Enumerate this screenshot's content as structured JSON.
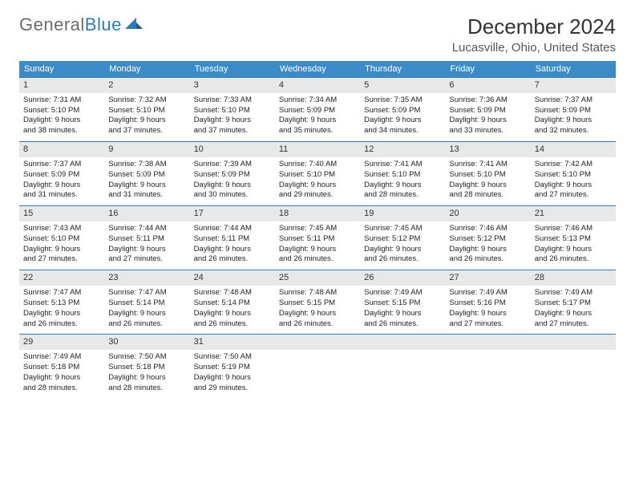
{
  "brand": {
    "part1": "General",
    "part2": "Blue"
  },
  "title": "December 2024",
  "location": "Lucasville, Ohio, United States",
  "colors": {
    "header_bg": "#3b8bc9",
    "header_text": "#ffffff",
    "daynum_bg": "#e8e8e8",
    "accent_border": "#2b7bbd"
  },
  "day_names": [
    "Sunday",
    "Monday",
    "Tuesday",
    "Wednesday",
    "Thursday",
    "Friday",
    "Saturday"
  ],
  "weeks": [
    [
      {
        "n": "1",
        "sr": "Sunrise: 7:31 AM",
        "ss": "Sunset: 5:10 PM",
        "d1": "Daylight: 9 hours",
        "d2": "and 38 minutes."
      },
      {
        "n": "2",
        "sr": "Sunrise: 7:32 AM",
        "ss": "Sunset: 5:10 PM",
        "d1": "Daylight: 9 hours",
        "d2": "and 37 minutes."
      },
      {
        "n": "3",
        "sr": "Sunrise: 7:33 AM",
        "ss": "Sunset: 5:10 PM",
        "d1": "Daylight: 9 hours",
        "d2": "and 37 minutes."
      },
      {
        "n": "4",
        "sr": "Sunrise: 7:34 AM",
        "ss": "Sunset: 5:09 PM",
        "d1": "Daylight: 9 hours",
        "d2": "and 35 minutes."
      },
      {
        "n": "5",
        "sr": "Sunrise: 7:35 AM",
        "ss": "Sunset: 5:09 PM",
        "d1": "Daylight: 9 hours",
        "d2": "and 34 minutes."
      },
      {
        "n": "6",
        "sr": "Sunrise: 7:36 AM",
        "ss": "Sunset: 5:09 PM",
        "d1": "Daylight: 9 hours",
        "d2": "and 33 minutes."
      },
      {
        "n": "7",
        "sr": "Sunrise: 7:37 AM",
        "ss": "Sunset: 5:09 PM",
        "d1": "Daylight: 9 hours",
        "d2": "and 32 minutes."
      }
    ],
    [
      {
        "n": "8",
        "sr": "Sunrise: 7:37 AM",
        "ss": "Sunset: 5:09 PM",
        "d1": "Daylight: 9 hours",
        "d2": "and 31 minutes."
      },
      {
        "n": "9",
        "sr": "Sunrise: 7:38 AM",
        "ss": "Sunset: 5:09 PM",
        "d1": "Daylight: 9 hours",
        "d2": "and 31 minutes."
      },
      {
        "n": "10",
        "sr": "Sunrise: 7:39 AM",
        "ss": "Sunset: 5:09 PM",
        "d1": "Daylight: 9 hours",
        "d2": "and 30 minutes."
      },
      {
        "n": "11",
        "sr": "Sunrise: 7:40 AM",
        "ss": "Sunset: 5:10 PM",
        "d1": "Daylight: 9 hours",
        "d2": "and 29 minutes."
      },
      {
        "n": "12",
        "sr": "Sunrise: 7:41 AM",
        "ss": "Sunset: 5:10 PM",
        "d1": "Daylight: 9 hours",
        "d2": "and 28 minutes."
      },
      {
        "n": "13",
        "sr": "Sunrise: 7:41 AM",
        "ss": "Sunset: 5:10 PM",
        "d1": "Daylight: 9 hours",
        "d2": "and 28 minutes."
      },
      {
        "n": "14",
        "sr": "Sunrise: 7:42 AM",
        "ss": "Sunset: 5:10 PM",
        "d1": "Daylight: 9 hours",
        "d2": "and 27 minutes."
      }
    ],
    [
      {
        "n": "15",
        "sr": "Sunrise: 7:43 AM",
        "ss": "Sunset: 5:10 PM",
        "d1": "Daylight: 9 hours",
        "d2": "and 27 minutes."
      },
      {
        "n": "16",
        "sr": "Sunrise: 7:44 AM",
        "ss": "Sunset: 5:11 PM",
        "d1": "Daylight: 9 hours",
        "d2": "and 27 minutes."
      },
      {
        "n": "17",
        "sr": "Sunrise: 7:44 AM",
        "ss": "Sunset: 5:11 PM",
        "d1": "Daylight: 9 hours",
        "d2": "and 26 minutes."
      },
      {
        "n": "18",
        "sr": "Sunrise: 7:45 AM",
        "ss": "Sunset: 5:11 PM",
        "d1": "Daylight: 9 hours",
        "d2": "and 26 minutes."
      },
      {
        "n": "19",
        "sr": "Sunrise: 7:45 AM",
        "ss": "Sunset: 5:12 PM",
        "d1": "Daylight: 9 hours",
        "d2": "and 26 minutes."
      },
      {
        "n": "20",
        "sr": "Sunrise: 7:46 AM",
        "ss": "Sunset: 5:12 PM",
        "d1": "Daylight: 9 hours",
        "d2": "and 26 minutes."
      },
      {
        "n": "21",
        "sr": "Sunrise: 7:46 AM",
        "ss": "Sunset: 5:13 PM",
        "d1": "Daylight: 9 hours",
        "d2": "and 26 minutes."
      }
    ],
    [
      {
        "n": "22",
        "sr": "Sunrise: 7:47 AM",
        "ss": "Sunset: 5:13 PM",
        "d1": "Daylight: 9 hours",
        "d2": "and 26 minutes."
      },
      {
        "n": "23",
        "sr": "Sunrise: 7:47 AM",
        "ss": "Sunset: 5:14 PM",
        "d1": "Daylight: 9 hours",
        "d2": "and 26 minutes."
      },
      {
        "n": "24",
        "sr": "Sunrise: 7:48 AM",
        "ss": "Sunset: 5:14 PM",
        "d1": "Daylight: 9 hours",
        "d2": "and 26 minutes."
      },
      {
        "n": "25",
        "sr": "Sunrise: 7:48 AM",
        "ss": "Sunset: 5:15 PM",
        "d1": "Daylight: 9 hours",
        "d2": "and 26 minutes."
      },
      {
        "n": "26",
        "sr": "Sunrise: 7:49 AM",
        "ss": "Sunset: 5:15 PM",
        "d1": "Daylight: 9 hours",
        "d2": "and 26 minutes."
      },
      {
        "n": "27",
        "sr": "Sunrise: 7:49 AM",
        "ss": "Sunset: 5:16 PM",
        "d1": "Daylight: 9 hours",
        "d2": "and 27 minutes."
      },
      {
        "n": "28",
        "sr": "Sunrise: 7:49 AM",
        "ss": "Sunset: 5:17 PM",
        "d1": "Daylight: 9 hours",
        "d2": "and 27 minutes."
      }
    ],
    [
      {
        "n": "29",
        "sr": "Sunrise: 7:49 AM",
        "ss": "Sunset: 5:18 PM",
        "d1": "Daylight: 9 hours",
        "d2": "and 28 minutes."
      },
      {
        "n": "30",
        "sr": "Sunrise: 7:50 AM",
        "ss": "Sunset: 5:18 PM",
        "d1": "Daylight: 9 hours",
        "d2": "and 28 minutes."
      },
      {
        "n": "31",
        "sr": "Sunrise: 7:50 AM",
        "ss": "Sunset: 5:19 PM",
        "d1": "Daylight: 9 hours",
        "d2": "and 29 minutes."
      },
      null,
      null,
      null,
      null
    ]
  ]
}
